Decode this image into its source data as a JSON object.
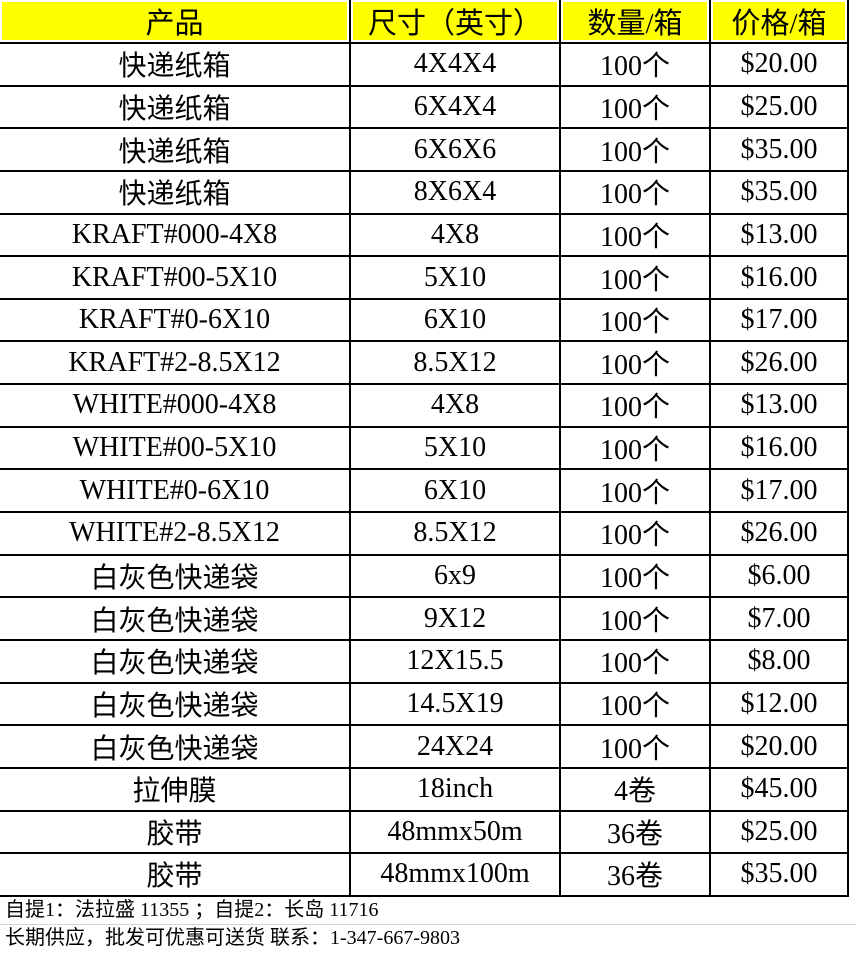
{
  "table": {
    "headers": [
      "产品",
      "尺寸（英寸）",
      "数量/箱",
      "价格/箱"
    ],
    "rows": [
      [
        "快递纸箱",
        "4X4X4",
        "100个",
        "$20.00"
      ],
      [
        "快递纸箱",
        "6X4X4",
        "100个",
        "$25.00"
      ],
      [
        "快递纸箱",
        "6X6X6",
        "100个",
        "$35.00"
      ],
      [
        "快递纸箱",
        "8X6X4",
        "100个",
        "$35.00"
      ],
      [
        "KRAFT#000-4X8",
        "4X8",
        "100个",
        "$13.00"
      ],
      [
        "KRAFT#00-5X10",
        "5X10",
        "100个",
        "$16.00"
      ],
      [
        "KRAFT#0-6X10",
        "6X10",
        "100个",
        "$17.00"
      ],
      [
        "KRAFT#2-8.5X12",
        "8.5X12",
        "100个",
        "$26.00"
      ],
      [
        "WHITE#000-4X8",
        "4X8",
        "100个",
        "$13.00"
      ],
      [
        "WHITE#00-5X10",
        "5X10",
        "100个",
        "$16.00"
      ],
      [
        "WHITE#0-6X10",
        "6X10",
        "100个",
        "$17.00"
      ],
      [
        "WHITE#2-8.5X12",
        "8.5X12",
        "100个",
        "$26.00"
      ],
      [
        "白灰色快递袋",
        "6x9",
        "100个",
        "$6.00"
      ],
      [
        "白灰色快递袋",
        "9X12",
        "100个",
        "$7.00"
      ],
      [
        "白灰色快递袋",
        "12X15.5",
        "100个",
        "$8.00"
      ],
      [
        "白灰色快递袋",
        "14.5X19",
        "100个",
        "$12.00"
      ],
      [
        "白灰色快递袋",
        "24X24",
        "100个",
        "$20.00"
      ],
      [
        "拉伸膜",
        "18inch",
        "4卷",
        "$45.00"
      ],
      [
        "胶带",
        "48mmx50m",
        "36卷",
        "$25.00"
      ],
      [
        "胶带",
        "48mmx100m",
        "36卷",
        "$35.00"
      ]
    ]
  },
  "footer": {
    "pickup_line": "自提1：法拉盛 11355 ；自提2：长岛 11716",
    "contact_line": "长期供应，批发可优惠可送货 联系：1-347-667-9803",
    "phone": "1-347-667-9803"
  },
  "colors": {
    "header_bg": "#FFFF00",
    "border": "#000000",
    "faint_grid": "#D6D6D6"
  }
}
